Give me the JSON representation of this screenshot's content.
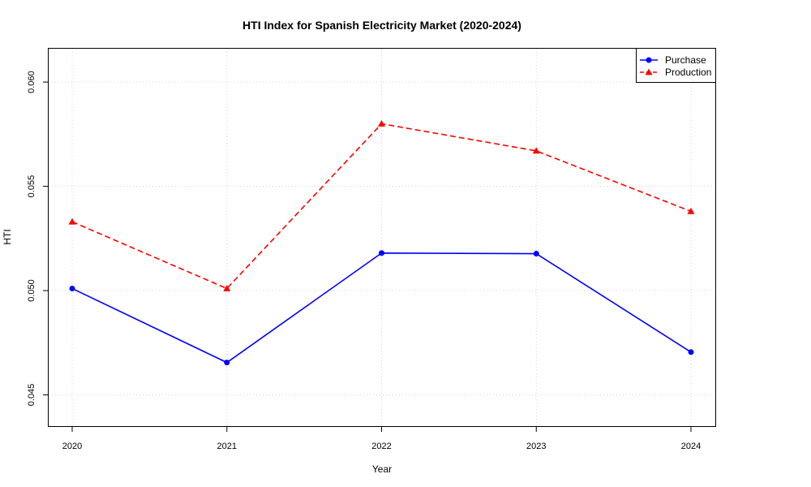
{
  "chart_data": {
    "type": "line",
    "title": "HTI Index for Spanish Electricity Market (2020-2024)",
    "xlabel": "Year",
    "ylabel": "HTI",
    "x": [
      "2020",
      "2021",
      "2022",
      "2023",
      "2024"
    ],
    "y_ticks": [
      "0.045",
      "0.050",
      "0.055",
      "0.060"
    ],
    "ylim": [
      0.0435,
      0.0616
    ],
    "grid": true,
    "legend_position": "top-right",
    "series": [
      {
        "name": "Purchase",
        "values": [
          0.0501,
          0.04655,
          0.0518,
          0.05177,
          0.04705
        ],
        "color": "#0000ff",
        "line_style": "solid",
        "marker": "circle"
      },
      {
        "name": "Production",
        "values": [
          0.0533,
          0.0501,
          0.058,
          0.0567,
          0.0538
        ],
        "color": "#ff0000",
        "line_style": "dashed",
        "marker": "triangle"
      }
    ]
  }
}
